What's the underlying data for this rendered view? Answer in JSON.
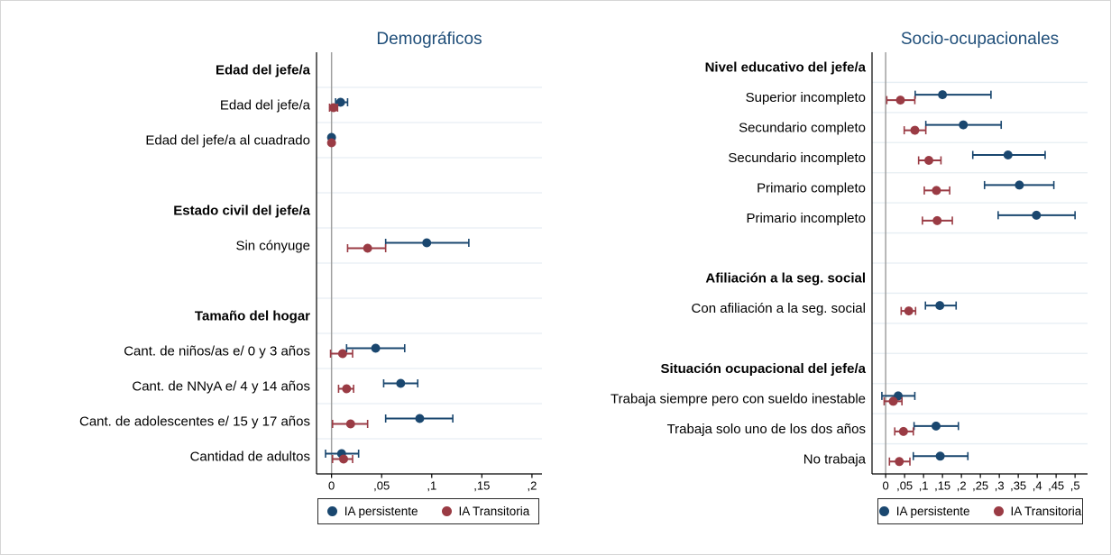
{
  "legend": {
    "persistente": "IA persistente",
    "transitoria": "IA Transitoria"
  },
  "colors": {
    "persistente": "#1a476f",
    "transitoria": "#9a3b44",
    "title": "#1f4e79",
    "gridline": "#e6eef3",
    "zero_line": "#a0a0a0",
    "axis": "#000000",
    "text": "#000000"
  },
  "chart_data": [
    {
      "type": "scatter",
      "subtype": "dot-whisker-coefplot",
      "title": "Demográficos",
      "xlim": [
        -0.015,
        0.21
      ],
      "grid": true,
      "legend_position": "bottom",
      "series_names": [
        "IA persistente",
        "IA Transitoria"
      ],
      "ticks": {
        "values": [
          0,
          0.05,
          0.1,
          0.15,
          0.2
        ],
        "labels": [
          "0",
          ",05",
          ",1",
          ",15",
          ",2"
        ]
      },
      "rows": [
        {
          "type": "header",
          "label": "Edad del jefe/a"
        },
        {
          "type": "item",
          "label": "Edad del jefe/a",
          "persistente": {
            "est": 0.009,
            "lo": 0.004,
            "hi": 0.016
          },
          "transitoria": {
            "est": 0.002,
            "lo": -0.002,
            "hi": 0.006
          }
        },
        {
          "type": "item",
          "label": "Edad del jefe/a al cuadrado",
          "persistente": {
            "est": 0.0,
            "lo": -0.001,
            "hi": 0.001
          },
          "transitoria": {
            "est": 0.0,
            "lo": -0.001,
            "hi": 0.001
          }
        },
        {
          "type": "spacer",
          "label": ""
        },
        {
          "type": "header",
          "label": "Estado civil del jefe/a"
        },
        {
          "type": "item",
          "label": "Sin cónyuge",
          "persistente": {
            "est": 0.095,
            "lo": 0.054,
            "hi": 0.137
          },
          "transitoria": {
            "est": 0.036,
            "lo": 0.016,
            "hi": 0.054
          }
        },
        {
          "type": "spacer",
          "label": ""
        },
        {
          "type": "header",
          "label": "Tamaño del hogar"
        },
        {
          "type": "item",
          "label": "Cant. de niños/as e/ 0 y 3 años",
          "persistente": {
            "est": 0.044,
            "lo": 0.015,
            "hi": 0.073
          },
          "transitoria": {
            "est": 0.011,
            "lo": -0.001,
            "hi": 0.021
          }
        },
        {
          "type": "item",
          "label": "Cant. de NNyA e/ 4 y 14 años",
          "persistente": {
            "est": 0.069,
            "lo": 0.052,
            "hi": 0.086
          },
          "transitoria": {
            "est": 0.015,
            "lo": 0.007,
            "hi": 0.022
          }
        },
        {
          "type": "item",
          "label": "Cant. de adolescentes e/ 15 y 17 años",
          "persistente": {
            "est": 0.088,
            "lo": 0.054,
            "hi": 0.121
          },
          "transitoria": {
            "est": 0.019,
            "lo": 0.001,
            "hi": 0.036
          }
        },
        {
          "type": "item",
          "label": "Cantidad de adultos",
          "persistente": {
            "est": 0.01,
            "lo": -0.006,
            "hi": 0.027
          },
          "transitoria": {
            "est": 0.012,
            "lo": 0.001,
            "hi": 0.021
          }
        }
      ]
    },
    {
      "type": "scatter",
      "subtype": "dot-whisker-coefplot",
      "title": "Socio-ocupacionales",
      "xlim": [
        -0.036,
        0.533
      ],
      "grid": true,
      "legend_position": "bottom",
      "series_names": [
        "IA persistente",
        "IA Transitoria"
      ],
      "ticks": {
        "values": [
          0,
          0.05,
          0.1,
          0.15,
          0.2,
          0.25,
          0.3,
          0.35,
          0.4,
          0.45,
          0.5
        ],
        "labels": [
          "0",
          ",05",
          ",1",
          ",15",
          ",2",
          ",25",
          ",3",
          ",35",
          ",4",
          ",45",
          ",5"
        ]
      },
      "rows": [
        {
          "type": "header",
          "label": "Nivel educativo del jefe/a"
        },
        {
          "type": "item",
          "label": "Superior incompleto",
          "persistente": {
            "est": 0.15,
            "lo": 0.078,
            "hi": 0.278
          },
          "transitoria": {
            "est": 0.039,
            "lo": 0.003,
            "hi": 0.077
          }
        },
        {
          "type": "item",
          "label": "Secundario completo",
          "persistente": {
            "est": 0.205,
            "lo": 0.106,
            "hi": 0.305
          },
          "transitoria": {
            "est": 0.077,
            "lo": 0.049,
            "hi": 0.106
          }
        },
        {
          "type": "item",
          "label": "Secundario incompleto",
          "persistente": {
            "est": 0.323,
            "lo": 0.23,
            "hi": 0.421
          },
          "transitoria": {
            "est": 0.114,
            "lo": 0.087,
            "hi": 0.146
          }
        },
        {
          "type": "item",
          "label": "Primario completo",
          "persistente": {
            "est": 0.353,
            "lo": 0.261,
            "hi": 0.444
          },
          "transitoria": {
            "est": 0.134,
            "lo": 0.102,
            "hi": 0.169
          }
        },
        {
          "type": "item",
          "label": "Primario incompleto",
          "persistente": {
            "est": 0.398,
            "lo": 0.297,
            "hi": 0.5
          },
          "transitoria": {
            "est": 0.136,
            "lo": 0.097,
            "hi": 0.176
          }
        },
        {
          "type": "spacer",
          "label": ""
        },
        {
          "type": "header",
          "label": "Afiliación a la seg. social"
        },
        {
          "type": "item",
          "label": "Con afiliación a la seg. social",
          "persistente": {
            "est": 0.143,
            "lo": 0.105,
            "hi": 0.186
          },
          "transitoria": {
            "est": 0.061,
            "lo": 0.041,
            "hi": 0.079
          }
        },
        {
          "type": "spacer",
          "label": ""
        },
        {
          "type": "header",
          "label": "Situación ocupacional del jefe/a"
        },
        {
          "type": "item",
          "label": "Trabaja siempre pero con sueldo inestable",
          "persistente": {
            "est": 0.033,
            "lo": -0.01,
            "hi": 0.077
          },
          "transitoria": {
            "est": 0.02,
            "lo": -0.004,
            "hi": 0.043
          }
        },
        {
          "type": "item",
          "label": "Trabaja solo uno de los dos años",
          "persistente": {
            "est": 0.133,
            "lo": 0.075,
            "hi": 0.192
          },
          "transitoria": {
            "est": 0.047,
            "lo": 0.024,
            "hi": 0.073
          }
        },
        {
          "type": "item",
          "label": "No trabaja",
          "persistente": {
            "est": 0.144,
            "lo": 0.073,
            "hi": 0.217
          },
          "transitoria": {
            "est": 0.036,
            "lo": 0.01,
            "hi": 0.064
          }
        }
      ]
    }
  ]
}
